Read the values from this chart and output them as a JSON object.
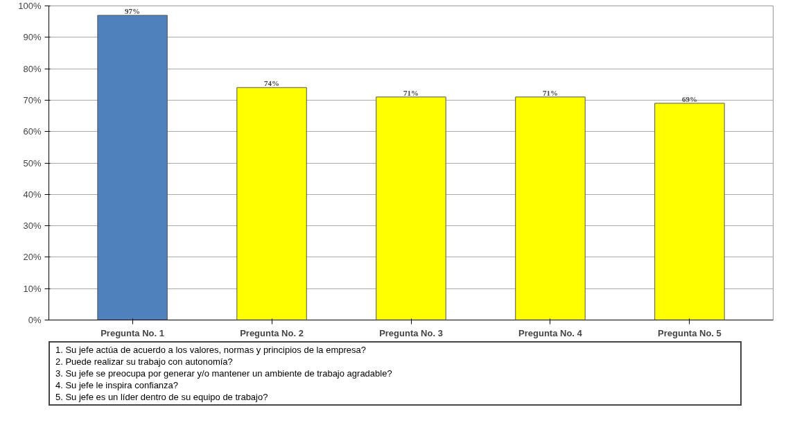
{
  "chart_data": {
    "type": "bar",
    "categories": [
      "Pregunta No. 1",
      "Pregunta No. 2",
      "Pregunta No. 3",
      "Pregunta No. 4",
      "Pregunta No. 5"
    ],
    "values": [
      97,
      74,
      71,
      71,
      69
    ],
    "colors": [
      "#4f81bd",
      "#ffff00",
      "#ffff00",
      "#ffff00",
      "#ffff00"
    ],
    "value_labels": [
      "97%",
      "74%",
      "71%",
      "71%",
      "69%"
    ],
    "ylim": [
      0,
      100
    ],
    "yticks": [
      {
        "value": 0,
        "label": "0%"
      },
      {
        "value": 10,
        "label": "10%"
      },
      {
        "value": 20,
        "label": "20%"
      },
      {
        "value": 30,
        "label": "30%"
      },
      {
        "value": 40,
        "label": "40%"
      },
      {
        "value": 50,
        "label": "50%"
      },
      {
        "value": 60,
        "label": "60%"
      },
      {
        "value": 70,
        "label": "70%"
      },
      {
        "value": 80,
        "label": "80%"
      },
      {
        "value": 90,
        "label": "90%"
      },
      {
        "value": 100,
        "label": "100%"
      }
    ],
    "grid": "y",
    "annotations": [
      "1. Su jefe actúa de acuerdo a los valores, normas y principios de la empresa?",
      "2. Puede realizar su trabajo con autonomía?",
      "3. Su jefe se preocupa por generar y/o mantener un ambiente de trabajo agradable?",
      "4. Su jefe le inspira confianza?",
      "5. Su jefe es un líder dentro de su equipo de trabajo?"
    ]
  }
}
